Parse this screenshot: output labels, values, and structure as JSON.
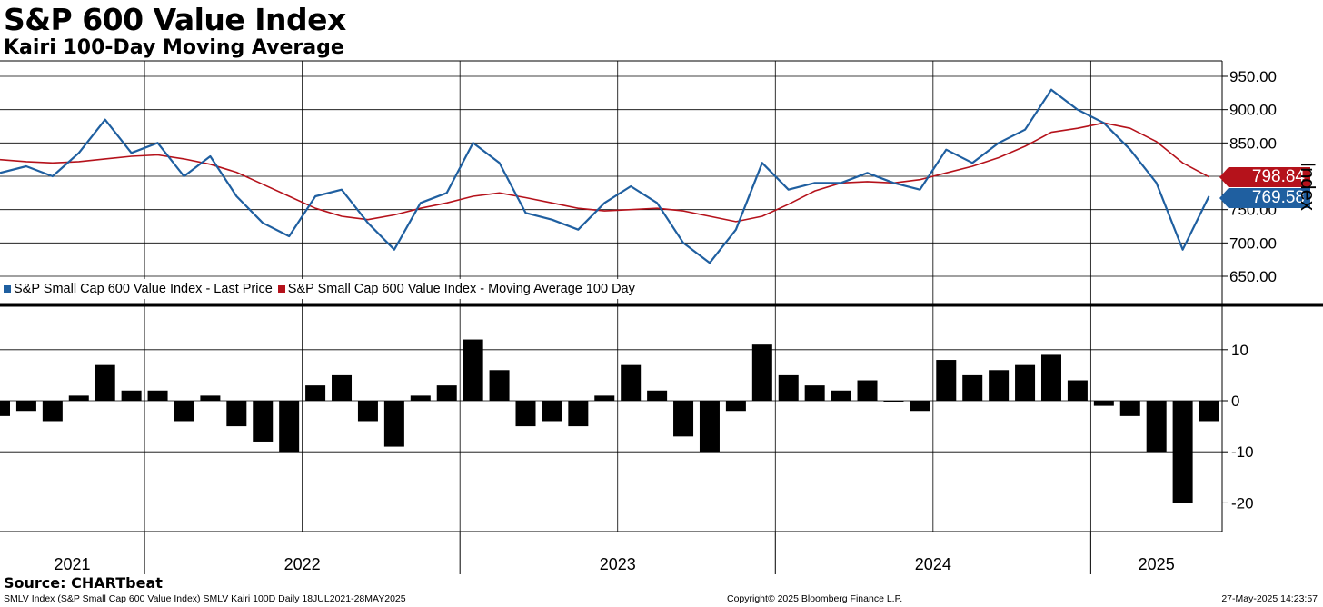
{
  "title": "S&P 600 Value Index",
  "subtitle": "Kairi 100-Day Moving Average",
  "source": "Source: CHARTbeat",
  "footer": {
    "left": "SMLV Index (S&P Small Cap 600 Value Index) SMLV Kairi 100D  Daily 18JUL2021-28MAY2025",
    "center": "Copyright© 2025 Bloomberg Finance L.P.",
    "right": "27-May-2025 14:23:57"
  },
  "colors": {
    "price": "#1f5fa0",
    "ma": "#b5121b",
    "kairi": "#000000"
  },
  "chart_data": [
    {
      "type": "line",
      "ylabel": "Index",
      "ylim": [
        620,
        965
      ],
      "yticks": [
        "950.00",
        "900.00",
        "850.00",
        "800.00",
        "750.00",
        "700.00",
        "650.00"
      ],
      "grid": true,
      "legend_position": "bottom-left",
      "x": [
        "2021-07",
        "2021-08",
        "2021-09",
        "2021-10",
        "2021-11",
        "2021-12",
        "2022-01",
        "2022-02",
        "2022-03",
        "2022-04",
        "2022-05",
        "2022-06",
        "2022-07",
        "2022-08",
        "2022-09",
        "2022-10",
        "2022-11",
        "2022-12",
        "2023-01",
        "2023-02",
        "2023-03",
        "2023-04",
        "2023-05",
        "2023-06",
        "2023-07",
        "2023-08",
        "2023-09",
        "2023-10",
        "2023-11",
        "2023-12",
        "2024-01",
        "2024-02",
        "2024-03",
        "2024-04",
        "2024-05",
        "2024-06",
        "2024-07",
        "2024-08",
        "2024-09",
        "2024-10",
        "2024-11",
        "2024-12",
        "2025-01",
        "2025-02",
        "2025-03",
        "2025-04",
        "2025-05"
      ],
      "series": [
        {
          "name": "S&P Small Cap 600 Value Index - Last Price",
          "last_value": "769.58",
          "values": [
            805,
            815,
            800,
            835,
            885,
            835,
            850,
            800,
            830,
            770,
            730,
            710,
            770,
            780,
            730,
            690,
            760,
            775,
            850,
            820,
            745,
            735,
            720,
            760,
            785,
            760,
            700,
            670,
            720,
            820,
            780,
            790,
            790,
            805,
            790,
            780,
            840,
            820,
            850,
            870,
            930,
            900,
            880,
            840,
            790,
            690,
            770
          ]
        },
        {
          "name": "S&P Small Cap 600 Value Index - Moving Average 100 Day",
          "last_value": "798.84",
          "values": [
            825,
            822,
            820,
            822,
            826,
            830,
            832,
            826,
            818,
            806,
            788,
            770,
            752,
            740,
            735,
            742,
            752,
            760,
            770,
            775,
            768,
            760,
            752,
            748,
            750,
            752,
            748,
            740,
            732,
            740,
            758,
            778,
            790,
            792,
            790,
            795,
            805,
            815,
            828,
            845,
            866,
            872,
            880,
            872,
            852,
            820,
            799
          ]
        }
      ]
    },
    {
      "type": "bar",
      "ylim": [
        -25,
        19
      ],
      "yticks": [
        "10",
        "0",
        "-10",
        "-20"
      ],
      "grid": true,
      "x": [
        "2021-07",
        "2021-08",
        "2021-09",
        "2021-10",
        "2021-11",
        "2021-12",
        "2022-01",
        "2022-02",
        "2022-03",
        "2022-04",
        "2022-05",
        "2022-06",
        "2022-07",
        "2022-08",
        "2022-09",
        "2022-10",
        "2022-11",
        "2022-12",
        "2023-01",
        "2023-02",
        "2023-03",
        "2023-04",
        "2023-05",
        "2023-06",
        "2023-07",
        "2023-08",
        "2023-09",
        "2023-10",
        "2023-11",
        "2023-12",
        "2024-01",
        "2024-02",
        "2024-03",
        "2024-04",
        "2024-05",
        "2024-06",
        "2024-07",
        "2024-08",
        "2024-09",
        "2024-10",
        "2024-11",
        "2024-12",
        "2025-01",
        "2025-02",
        "2025-03",
        "2025-04",
        "2025-05"
      ],
      "values": [
        -3,
        -2,
        -4,
        1,
        7,
        2,
        2,
        -4,
        1,
        -5,
        -8,
        -10,
        3,
        5,
        -4,
        -9,
        1,
        3,
        12,
        6,
        -5,
        -4,
        -5,
        1,
        7,
        2,
        -7,
        -10,
        -2,
        11,
        5,
        3,
        2,
        4,
        0,
        -2,
        8,
        5,
        6,
        7,
        9,
        4,
        -1,
        -3,
        -10,
        -20,
        -4
      ]
    }
  ],
  "x_axis": {
    "labels": [
      "2021",
      "2022",
      "2023",
      "2024",
      "2025"
    ]
  }
}
